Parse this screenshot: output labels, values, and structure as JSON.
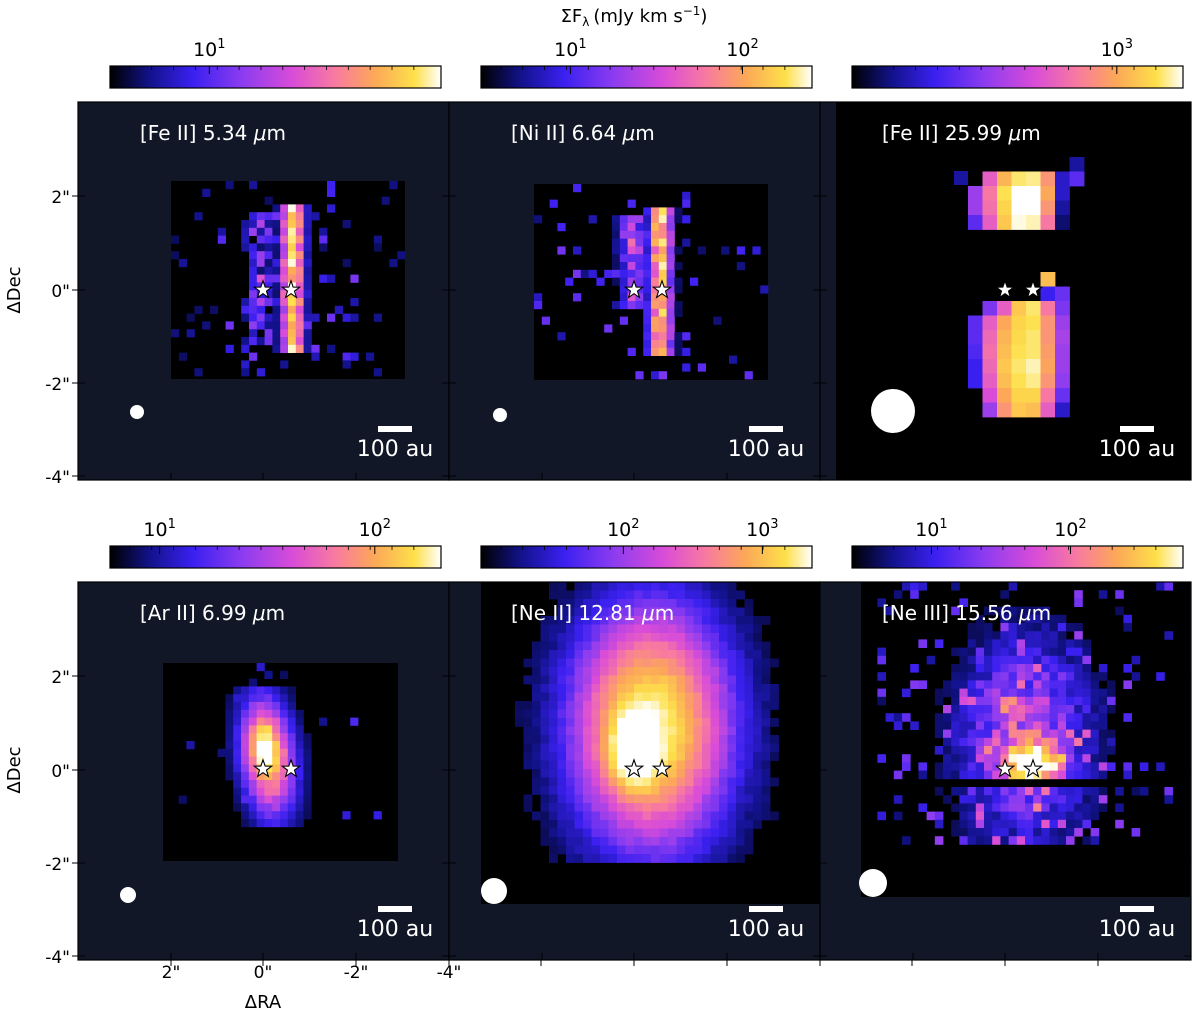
{
  "figure": {
    "colorbar_title": "ΣF",
    "colorbar_title_sub": "λ",
    "colorbar_title_units": "(mJy km s",
    "colorbar_title_exp": "−1",
    "colorbar_title_close": ")",
    "ylabel": "ΔDec",
    "xlabel": "ΔRA",
    "y_ticks": [
      "2\"",
      "0\"",
      "-2\"",
      "-4\""
    ],
    "x_ticks": [
      "2\"",
      "0\"",
      "-2\"",
      "-4\""
    ],
    "scale_bar_label": "100 au"
  },
  "colormap": {
    "name": "gnuplot2-like",
    "stops": [
      "#000000",
      "#12128a",
      "#3a20f0",
      "#8c3cf0",
      "#d84cd8",
      "#f87aa0",
      "#fca858",
      "#fde04a",
      "#ffffff"
    ]
  },
  "panels": [
    {
      "row": 0,
      "col": 0,
      "label": "[Fe II] 5.34 ",
      "unit_mu": "μ",
      "unit_rest": "m",
      "colorbar_tick_base": "10",
      "colorbar_tick_exp": [
        "1"
      ],
      "colorbar_exp_positions": [
        0.3
      ]
    },
    {
      "row": 0,
      "col": 1,
      "label": "[Ni II] 6.64 ",
      "unit_mu": "μ",
      "unit_rest": "m",
      "colorbar_tick_base": "10",
      "colorbar_tick_exp": [
        "1",
        "2"
      ],
      "colorbar_exp_positions": [
        0.27,
        0.79
      ]
    },
    {
      "row": 0,
      "col": 2,
      "label": "[Fe II] 25.99 ",
      "unit_mu": "μ",
      "unit_rest": "m",
      "colorbar_tick_base": "10",
      "colorbar_tick_exp": [
        "3"
      ],
      "colorbar_exp_positions": [
        0.8
      ]
    },
    {
      "row": 1,
      "col": 0,
      "label": "[Ar II] 6.99 ",
      "unit_mu": "μ",
      "unit_rest": "m",
      "colorbar_tick_base": "10",
      "colorbar_tick_exp": [
        "1",
        "2"
      ],
      "colorbar_exp_positions": [
        0.15,
        0.8
      ]
    },
    {
      "row": 1,
      "col": 1,
      "label": "[Ne II] 12.81 ",
      "unit_mu": "μ",
      "unit_rest": "m",
      "colorbar_tick_base": "10",
      "colorbar_tick_exp": [
        "2",
        "3"
      ],
      "colorbar_exp_positions": [
        0.43,
        0.85
      ]
    },
    {
      "row": 1,
      "col": 2,
      "label": "[Ne III] 15.56 ",
      "unit_mu": "μ",
      "unit_rest": "m",
      "colorbar_tick_base": "10",
      "colorbar_tick_exp": [
        "1",
        "2"
      ],
      "colorbar_exp_positions": [
        0.24,
        0.66
      ]
    }
  ]
}
